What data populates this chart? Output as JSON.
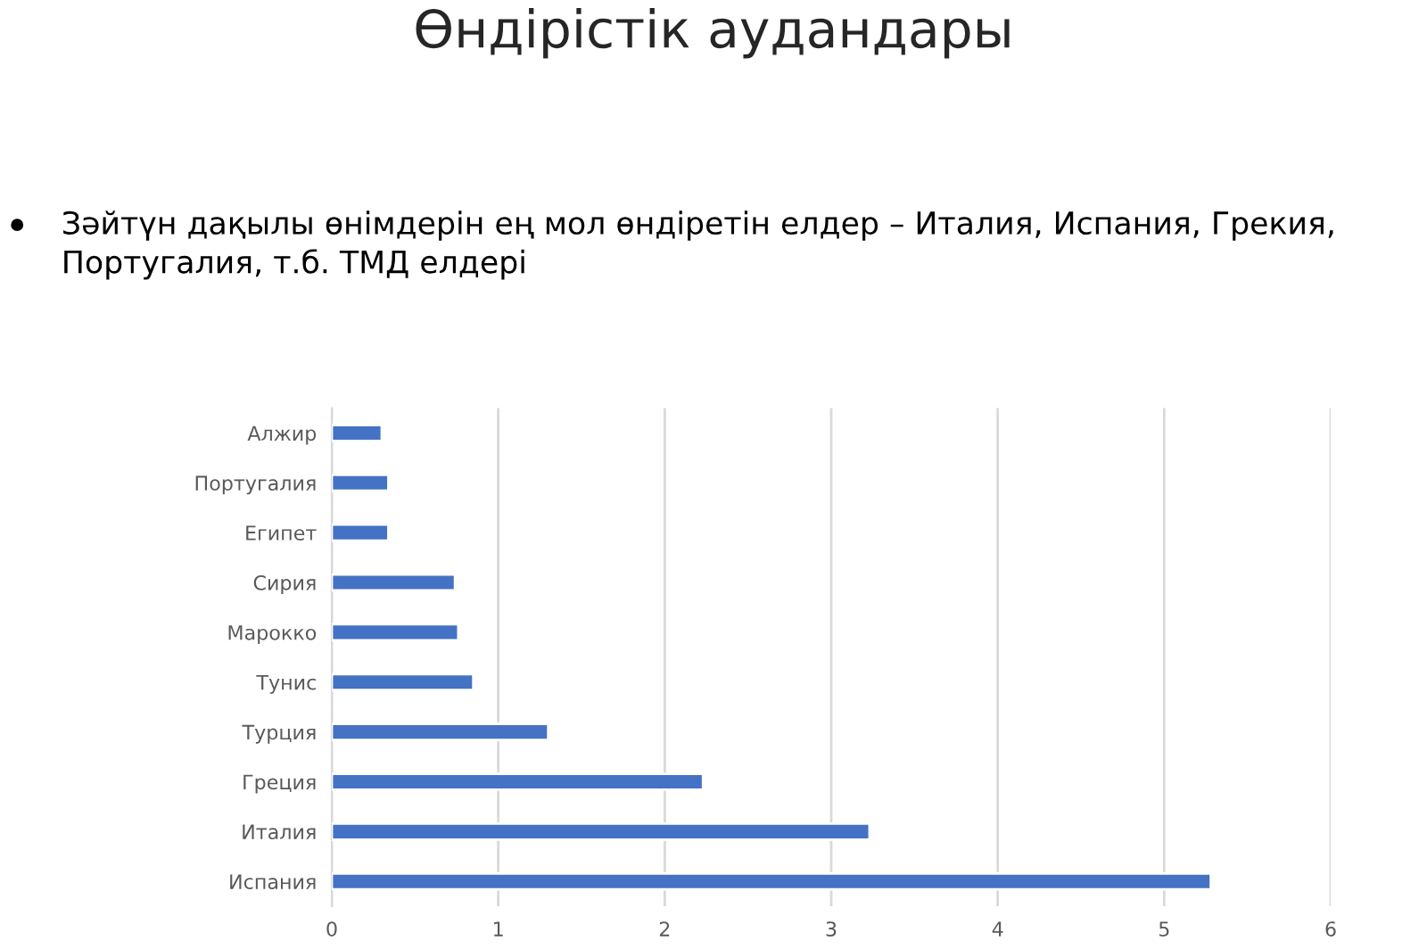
{
  "chart_data": {
    "type": "bar",
    "orientation": "horizontal",
    "title": "Өндірістік аудандары",
    "annotations": [
      "Зәйтүн дақылы өнімдерін ең мол өндіретін елдер – Италия, Испания, Грекия, Португалия, т.б. ТМД елдері"
    ],
    "categories": [
      "Алжир",
      "Португалия",
      "Египет",
      "Сирия",
      "Марокко",
      "Тунис",
      "Турция",
      "Греция",
      "Италия",
      "Испания"
    ],
    "values": [
      0.3,
      0.34,
      0.34,
      0.74,
      0.76,
      0.85,
      1.3,
      2.23,
      3.23,
      5.28
    ],
    "color": "#4472c4",
    "xlim": [
      0,
      6
    ],
    "xticks": [
      0,
      1,
      2,
      3,
      4,
      5,
      6
    ],
    "grid": "x"
  }
}
